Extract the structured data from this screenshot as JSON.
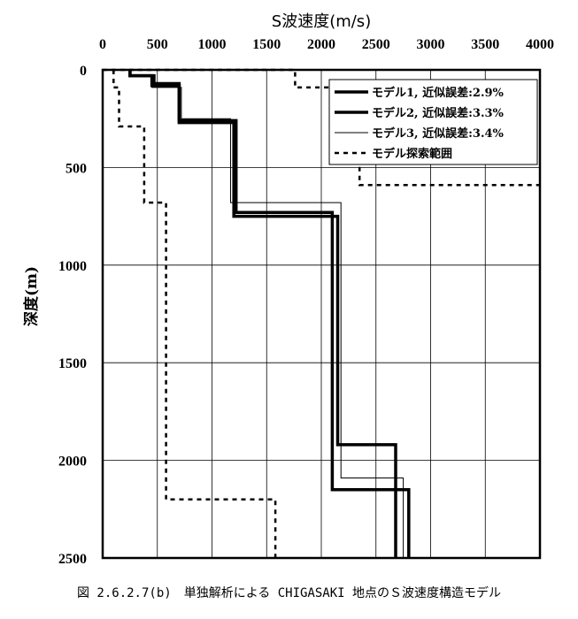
{
  "caption": "図 2.6.2.7(b)　単独解析による CHIGASAKI 地点のＳ波速度構造モデル",
  "chart_data": {
    "type": "line",
    "title": "",
    "xlabel": "S波速度(m/s)",
    "ylabel": "深度(m)",
    "xlim": [
      0,
      4000
    ],
    "ylim": [
      0,
      2500
    ],
    "y_inverted": true,
    "x_axis_position": "top",
    "xticks": [
      0,
      500,
      1000,
      1500,
      2000,
      2500,
      3000,
      3500,
      4000
    ],
    "yticks": [
      0,
      500,
      1000,
      1500,
      2000,
      2500
    ],
    "grid": true,
    "legend_position": "top-right",
    "series": [
      {
        "name": "モデル1, 近似誤差:2.9%",
        "style": "thick",
        "points": [
          [
            250,
            0
          ],
          [
            250,
            30
          ],
          [
            450,
            30
          ],
          [
            450,
            80
          ],
          [
            700,
            80
          ],
          [
            700,
            270
          ],
          [
            1200,
            270
          ],
          [
            1200,
            750
          ],
          [
            2150,
            750
          ],
          [
            2150,
            1920
          ],
          [
            2680,
            1920
          ],
          [
            2680,
            2500
          ]
        ]
      },
      {
        "name": "モデル2, 近似誤差:3.3%",
        "style": "thick",
        "points": [
          [
            250,
            0
          ],
          [
            250,
            30
          ],
          [
            470,
            30
          ],
          [
            470,
            70
          ],
          [
            700,
            70
          ],
          [
            700,
            260
          ],
          [
            1220,
            260
          ],
          [
            1220,
            730
          ],
          [
            2100,
            730
          ],
          [
            2100,
            2150
          ],
          [
            2800,
            2150
          ],
          [
            2800,
            2500
          ]
        ]
      },
      {
        "name": "モデル3, 近似誤差:3.4%",
        "style": "thin",
        "points": [
          [
            250,
            0
          ],
          [
            250,
            30
          ],
          [
            450,
            30
          ],
          [
            450,
            90
          ],
          [
            720,
            90
          ],
          [
            720,
            250
          ],
          [
            1170,
            250
          ],
          [
            1170,
            680
          ],
          [
            2180,
            680
          ],
          [
            2180,
            2090
          ],
          [
            2750,
            2090
          ],
          [
            2750,
            2500
          ]
        ]
      },
      {
        "name": "モデル探索範囲",
        "style": "dotted",
        "points_left": [
          [
            100,
            0
          ],
          [
            100,
            90
          ],
          [
            150,
            90
          ],
          [
            150,
            290
          ],
          [
            380,
            290
          ],
          [
            380,
            680
          ],
          [
            580,
            680
          ],
          [
            580,
            2200
          ],
          [
            1580,
            2200
          ],
          [
            1580,
            2500
          ]
        ],
        "points_right": [
          [
            0,
            0
          ],
          [
            1760,
            0
          ],
          [
            1760,
            90
          ],
          [
            2350,
            90
          ],
          [
            2350,
            590
          ],
          [
            4000,
            590
          ]
        ]
      }
    ]
  }
}
